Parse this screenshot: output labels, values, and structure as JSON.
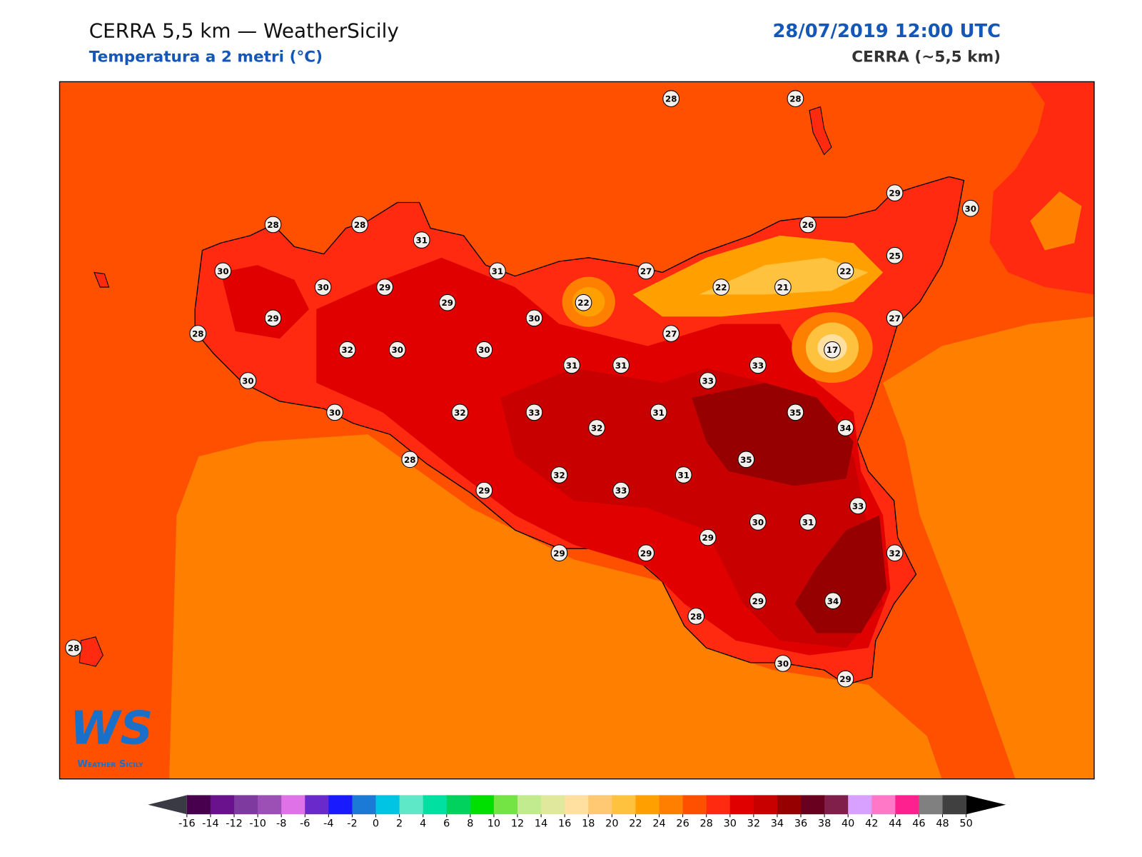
{
  "header": {
    "title": "CERRA 5,5 km — WeatherSicily",
    "subtitle": "Temperatura a 2 metri (°C)",
    "date": "28/07/2019 12:00 UTC",
    "model": "CERRA (~5,5 km)"
  },
  "stations": [
    28,
    28,
    29,
    30,
    28,
    28,
    26,
    31,
    25,
    30,
    31,
    27,
    30,
    29,
    22,
    21,
    22,
    29,
    22,
    29,
    30,
    27,
    28,
    27,
    32,
    30,
    30,
    17,
    31,
    31,
    33,
    30,
    33,
    30,
    32,
    33,
    31,
    35,
    32,
    34,
    28,
    35,
    32,
    31,
    33,
    29,
    33,
    30,
    31,
    29,
    29,
    29,
    32,
    29,
    34,
    28,
    28,
    30,
    29
  ],
  "colorbar": {
    "ticks": [
      -16,
      -14,
      -12,
      -10,
      -8,
      -6,
      -4,
      -2,
      0,
      2,
      4,
      6,
      8,
      10,
      12,
      14,
      16,
      18,
      20,
      22,
      24,
      26,
      28,
      30,
      32,
      34,
      36,
      38,
      40,
      42,
      44,
      46,
      48,
      50
    ],
    "colors": [
      "#48004e",
      "#6a128e",
      "#7e3a9e",
      "#9c50b6",
      "#de72e6",
      "#6a2acb",
      "#1a1aff",
      "#1a7ad6",
      "#00c4e4",
      "#5ee8c8",
      "#00e0a0",
      "#00d25e",
      "#00e000",
      "#74e444",
      "#c2ea8e",
      "#e0e89e",
      "#ffe0a0",
      "#ffc872",
      "#ffc23e",
      "#ffa000",
      "#ff8000",
      "#ff5000",
      "#ff2a10",
      "#e00000",
      "#c80000",
      "#960000",
      "#6a0020",
      "#80204a",
      "#d8a0ff",
      "#ff78c8",
      "#ff2090",
      "#808080",
      "#404040"
    ],
    "under_color": "#3a3a44",
    "over_color": "#000000"
  },
  "logo": {
    "mark": "WS",
    "text": "Weather Sicily"
  }
}
